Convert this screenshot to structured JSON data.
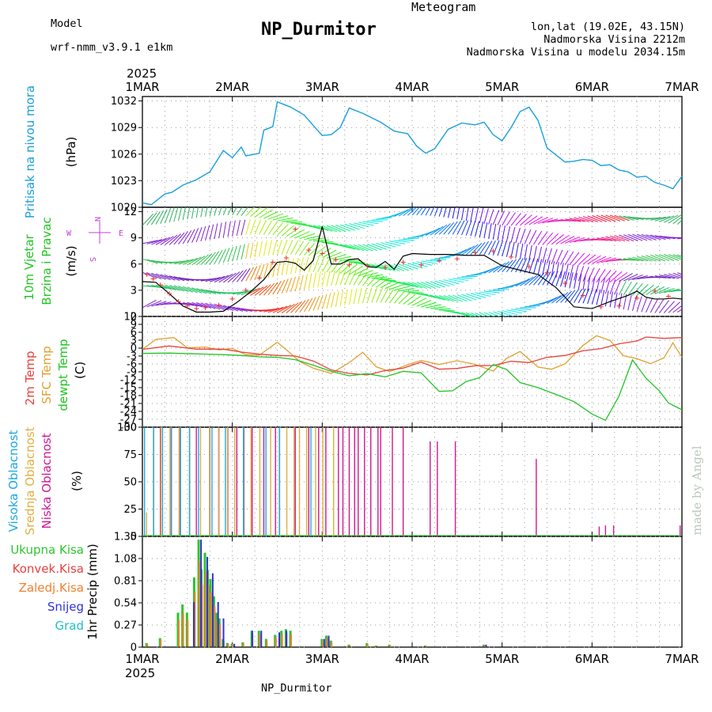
{
  "header": {
    "model_label": "Model",
    "model_name": "wrf-nmm_v3.9.1  e1km",
    "title": "NP_Durmitor",
    "meteogram": "Meteogram",
    "coords": "lon,lat (19.02E, 43.15N)",
    "altitude": "Nadmorska Visina 2212m",
    "model_altitude": "Nadmorska Visina u modelu 2034.15m",
    "year": "2025",
    "footer_name": "NP_Durmitor",
    "credit": "made by Angel",
    "wind_compass": {
      "n": "N",
      "e": "E",
      "s": "S",
      "w": "W"
    }
  },
  "colors": {
    "pressure": "#1a9fdc",
    "temp2m": "#e8423a",
    "sfc": "#e0a030",
    "dew": "#22c422",
    "high_cloud": "#20a8e0",
    "mid_cloud": "#e0b040",
    "low_cloud": "#d01890",
    "total_precip": "#2ec42e",
    "conv_precip": "#e84040",
    "frozen": "#f08030",
    "snow": "#3030e0",
    "graupel": "#20c0c0",
    "legend_magenta": "#b048d8"
  },
  "chart_data": [
    {
      "type": "line",
      "title": "",
      "ylabel_parts": [
        "Pritisak na nivou mora",
        "(hPa)"
      ],
      "x_ticks": [
        "1MAR",
        "2MAR",
        "3MAR",
        "4MAR",
        "5MAR",
        "6MAR",
        "7MAR"
      ],
      "xlim_days": [
        0,
        6
      ],
      "ylim": [
        1020,
        1032.5
      ],
      "y_ticks": [
        "1020",
        "1023",
        "1026",
        "1029",
        "1032"
      ],
      "grid": true,
      "series": [
        {
          "x": [
            0,
            0.1,
            0.25,
            0.33,
            0.45,
            0.6,
            0.75,
            0.9,
            1.0,
            1.1,
            1.15,
            1.3,
            1.35,
            1.45,
            1.5,
            1.65,
            1.8,
            1.92,
            2.0,
            2.1,
            2.2,
            2.3,
            2.45,
            2.55,
            2.65,
            2.8,
            2.95,
            3.05,
            3.15,
            3.25,
            3.4,
            3.55,
            3.7,
            3.8,
            3.9,
            4.0,
            4.1,
            4.2,
            4.3,
            4.4,
            4.5,
            4.6,
            4.7,
            4.8,
            4.9,
            5.0,
            5.1,
            5.2,
            5.3,
            5.4,
            5.5,
            5.6,
            5.7,
            5.8,
            5.9,
            6.0
          ],
          "values": [
            1020.5,
            1020.3,
            1021.5,
            1021.7,
            1022.5,
            1023.1,
            1024.0,
            1026.4,
            1025.6,
            1026.8,
            1025.8,
            1026.1,
            1028.7,
            1029.1,
            1031.9,
            1031.3,
            1030.4,
            1029.0,
            1028.1,
            1028.2,
            1029.0,
            1031.2,
            1030.6,
            1030.1,
            1029.6,
            1028.6,
            1028.3,
            1026.9,
            1026.1,
            1026.6,
            1028.8,
            1029.5,
            1029.3,
            1029.6,
            1028.2,
            1027.5,
            1029.0,
            1030.8,
            1031.3,
            1029.8,
            1026.7,
            1025.9,
            1025.1,
            1025.2,
            1025.4,
            1025.3,
            1024.7,
            1024.8,
            1024.2,
            1024.0,
            1023.4,
            1023.5,
            1022.8,
            1022.5,
            1022.1,
            1023.5
          ]
        }
      ]
    },
    {
      "type": "line",
      "title": "",
      "ylabel_parts": [
        "10m Vjetar",
        "Brzina i Pravac",
        "(m/s)"
      ],
      "ylim": [
        0,
        12.5
      ],
      "y_ticks": [
        "0",
        "3",
        "6",
        "9",
        "12"
      ],
      "grid": true,
      "series": [
        {
          "name": "wind speed",
          "x": [
            0,
            0.15,
            0.3,
            0.45,
            0.6,
            0.75,
            0.9,
            1.05,
            1.2,
            1.35,
            1.5,
            1.6,
            1.7,
            1.8,
            1.9,
            2.0,
            2.1,
            2.2,
            2.3,
            2.4,
            2.5,
            2.6,
            2.7,
            2.8,
            2.9,
            3.0,
            3.2,
            3.4,
            3.6,
            3.8,
            4.0,
            4.2,
            4.4,
            4.6,
            4.8,
            5.0,
            5.2,
            5.4,
            5.5,
            5.6,
            5.7,
            5.8,
            5.9,
            6.0
          ],
          "values": [
            4.0,
            3.9,
            2.6,
            1.2,
            0.5,
            0.5,
            0.6,
            1.6,
            2.8,
            4.2,
            6.2,
            6.3,
            6.1,
            5.3,
            6.4,
            10.3,
            6.0,
            6.0,
            6.5,
            6.6,
            5.7,
            5.6,
            6.3,
            5.4,
            6.9,
            7.2,
            7.1,
            7.1,
            7.0,
            7.0,
            5.8,
            5.3,
            4.8,
            3.3,
            1.1,
            0.9,
            1.7,
            2.4,
            2.9,
            2.2,
            2.0,
            2.0,
            2.1,
            2.0
          ]
        },
        {
          "name": "gust",
          "x": [
            0.05,
            0.12,
            0.2,
            0.3,
            0.4,
            0.5,
            0.6,
            0.7,
            0.85,
            1.0,
            1.15,
            1.3,
            1.45,
            1.6,
            1.7,
            1.85,
            2.0,
            2.15,
            2.3,
            2.5,
            2.7,
            2.9,
            3.1,
            3.3,
            3.5,
            3.7,
            3.9,
            4.1,
            4.3,
            4.5,
            4.7,
            4.9,
            5.1,
            5.3,
            5.5,
            5.7,
            5.85
          ],
          "values": [
            4.8,
            4.3,
            3.6,
            2.6,
            1.7,
            1.2,
            0.9,
            1.0,
            1.3,
            2.0,
            3.0,
            4.4,
            6.2,
            6.7,
            10.0,
            7.6,
            7.2,
            6.5,
            5.9,
            5.8,
            5.6,
            6.2,
            5.9,
            6.4,
            6.6,
            7.3,
            7.5,
            6.8,
            5.7,
            5.0,
            3.8,
            2.4,
            1.1,
            1.2,
            2.1,
            2.9,
            2.3
          ]
        }
      ]
    },
    {
      "type": "line",
      "title": "",
      "ylabel_parts": [
        "2m Temp",
        "SFC Temp",
        "dewpt Temp",
        "(C)"
      ],
      "ylim": [
        -30,
        12
      ],
      "y_ticks": [
        "-30",
        "-27",
        "-24",
        "-21",
        "-18",
        "-15",
        "-12",
        "-9",
        "-6",
        "-3",
        "0",
        "3",
        "6",
        "9",
        "12"
      ],
      "grid": true,
      "series": [
        {
          "name": "2m Temp",
          "x": [
            0,
            0.3,
            0.6,
            0.9,
            1.1,
            1.3,
            1.5,
            1.7,
            1.9,
            2.1,
            2.3,
            2.5,
            2.7,
            2.9,
            3.1,
            3.3,
            3.5,
            3.7,
            3.9,
            4.1,
            4.3,
            4.5,
            4.7,
            4.9,
            5.1,
            5.3,
            5.5,
            5.6,
            5.8,
            6.0
          ],
          "values": [
            -0.5,
            0.8,
            -0.4,
            -0.4,
            -1.5,
            -2.3,
            -2.8,
            -3.0,
            -4.9,
            -8.3,
            -9.6,
            -10.2,
            -8.5,
            -7.6,
            -5.3,
            -8.0,
            -7.7,
            -6.7,
            -6.6,
            -5.0,
            -5.5,
            -3.5,
            -2.8,
            -1.0,
            -0.2,
            1.6,
            2.7,
            4.2,
            3.7,
            4.0
          ]
        },
        {
          "name": "SFC Temp",
          "x": [
            0,
            0.15,
            0.35,
            0.5,
            0.7,
            0.85,
            1.0,
            1.15,
            1.3,
            1.5,
            1.6,
            1.75,
            1.9,
            2.1,
            2.3,
            2.45,
            2.6,
            2.75,
            2.95,
            3.1,
            3.3,
            3.5,
            3.7,
            3.9,
            4.05,
            4.2,
            4.4,
            4.55,
            4.7,
            4.9,
            5.05,
            5.2,
            5.35,
            5.5,
            5.65,
            5.8,
            5.9,
            6.0
          ],
          "values": [
            -0.5,
            3.3,
            4.0,
            0.1,
            0.4,
            -0.7,
            -0.1,
            -2.5,
            -2.7,
            2.2,
            -0.6,
            -5.1,
            -7.6,
            -9.6,
            -5.5,
            -1.6,
            -7.1,
            -8.9,
            -6.3,
            -4.7,
            -6.2,
            -4.8,
            -6.2,
            -8.7,
            -3.9,
            -1.3,
            -7.2,
            -8.0,
            -6.0,
            1.0,
            4.7,
            2.9,
            -2.9,
            -4.0,
            -5.9,
            -3.7,
            2.0,
            -3.5
          ]
        },
        {
          "name": "dewpt Temp",
          "x": [
            0,
            0.3,
            0.6,
            0.9,
            1.1,
            1.3,
            1.5,
            1.7,
            1.9,
            2.1,
            2.3,
            2.5,
            2.7,
            2.9,
            3.1,
            3.3,
            3.45,
            3.6,
            3.75,
            3.9,
            4.05,
            4.2,
            4.4,
            4.6,
            4.8,
            5.0,
            5.15,
            5.3,
            5.45,
            5.6,
            5.75,
            5.85,
            6.0
          ],
          "values": [
            -2.0,
            -1.9,
            -2.2,
            -2.5,
            -2.8,
            -3.3,
            -3.5,
            -4.4,
            -6.5,
            -8.8,
            -10.5,
            -9.7,
            -10.9,
            -8.8,
            -9.4,
            -16.4,
            -16.2,
            -12.7,
            -11.2,
            -6.3,
            -8.1,
            -13.1,
            -15.0,
            -17.6,
            -20.3,
            -25.0,
            -27.4,
            -18.2,
            -4.5,
            -11.4,
            -16.3,
            -20.8,
            -23.4
          ]
        }
      ]
    },
    {
      "type": "bar",
      "title": "",
      "ylabel_parts": [
        "Visoka Oblacnost",
        "Srednja Oblacnost",
        "Niska Oblacnost",
        "(%)"
      ],
      "ylim": [
        0,
        100
      ],
      "y_ticks": [
        "0",
        "25",
        "50",
        "75",
        "100"
      ],
      "grid": true,
      "series": [
        {
          "name": "Niska Oblacnost",
          "x": [
            0.2,
            0.32,
            0.42,
            0.6,
            0.75,
            0.85,
            0.95,
            1.05,
            1.13,
            1.22,
            1.35,
            1.48,
            1.7,
            1.85,
            1.96,
            2.04,
            2.18,
            2.23,
            2.3,
            2.36,
            2.4,
            2.47,
            2.54,
            2.62,
            2.65,
            2.78,
            2.9,
            3.2,
            3.28,
            3.48,
            4.38,
            5.08,
            5.15,
            5.24,
            5.98
          ],
          "values": [
            100,
            100,
            100,
            100,
            100,
            100,
            100,
            100,
            100,
            100,
            100,
            100,
            100,
            100,
            100,
            100,
            100,
            100,
            100,
            100,
            100,
            100,
            100,
            100,
            100,
            100,
            100,
            87,
            87,
            87,
            71,
            9,
            10,
            10,
            10
          ]
        },
        {
          "name": "Srednja Oblacnost",
          "x": [
            0.02,
            0.1,
            0.18,
            0.28,
            0.38,
            0.5,
            0.62,
            0.72,
            0.82,
            0.92,
            1.0,
            1.1,
            1.18,
            1.28,
            1.4,
            1.5,
            1.58,
            1.66,
            1.72,
            1.8,
            1.9,
            1.98,
            2.1
          ],
          "values": [
            22,
            100,
            100,
            100,
            100,
            100,
            100,
            100,
            100,
            100,
            100,
            100,
            100,
            100,
            100,
            100,
            100,
            100,
            100,
            100,
            100,
            100,
            100
          ]
        },
        {
          "name": "Visoka Oblacnost",
          "x": [
            0.05,
            0.15,
            0.25,
            0.35,
            0.45,
            0.55,
            0.65,
            0.8,
            0.95,
            1.15,
            1.4,
            1.55,
            1.9
          ],
          "values": [
            100,
            100,
            100,
            100,
            100,
            100,
            100,
            100,
            100,
            100,
            100,
            100,
            100
          ]
        }
      ]
    },
    {
      "type": "bar",
      "title": "",
      "ylabel_parts": [
        "Ukupna Kisa",
        "Konvek.Kisa",
        "Zaledj.Kisa",
        "Snijeg",
        "Grad",
        "1hr Precip (mm)"
      ],
      "ylim": [
        0,
        1.35
      ],
      "y_ticks": [
        "0",
        "0.27",
        "0.54",
        "0.81",
        "1.08",
        "1.35"
      ],
      "grid": true,
      "series": [
        {
          "name": "Ukupna Kisa",
          "x": [
            0.05,
            0.2,
            0.4,
            0.45,
            0.5,
            0.58,
            0.63,
            0.66,
            0.7,
            0.73,
            0.76,
            0.8,
            0.83,
            0.86,
            0.9,
            0.95,
            1.0,
            1.12,
            1.22,
            1.3,
            1.38,
            1.48,
            1.55,
            1.6,
            1.65,
            2.0,
            2.05,
            2.1,
            2.3,
            2.5,
            2.6,
            2.75,
            3.15,
            3.8
          ],
          "values": [
            0.05,
            0.11,
            0.42,
            0.52,
            0.42,
            0.85,
            1.31,
            0.95,
            1.15,
            0.94,
            0.83,
            0.62,
            0.42,
            0.35,
            0.1,
            0.05,
            0.04,
            0.06,
            0.2,
            0.2,
            0.1,
            0.15,
            0.2,
            0.22,
            0.2,
            0.1,
            0.14,
            0.08,
            0.03,
            0.05,
            0.02,
            0.03,
            0.02,
            0.03
          ]
        },
        {
          "name": "Snijeg",
          "x": [
            0.55,
            0.63,
            0.7,
            0.76,
            0.82,
            0.88,
            1.0,
            1.2,
            1.3,
            1.5,
            1.58,
            2.0,
            2.05,
            3.8
          ],
          "values": [
            0.55,
            1.31,
            1.1,
            0.9,
            0.55,
            0.35,
            0.04,
            0.2,
            0.2,
            0.18,
            0.2,
            0.1,
            0.14,
            0.03
          ]
        }
      ]
    }
  ]
}
